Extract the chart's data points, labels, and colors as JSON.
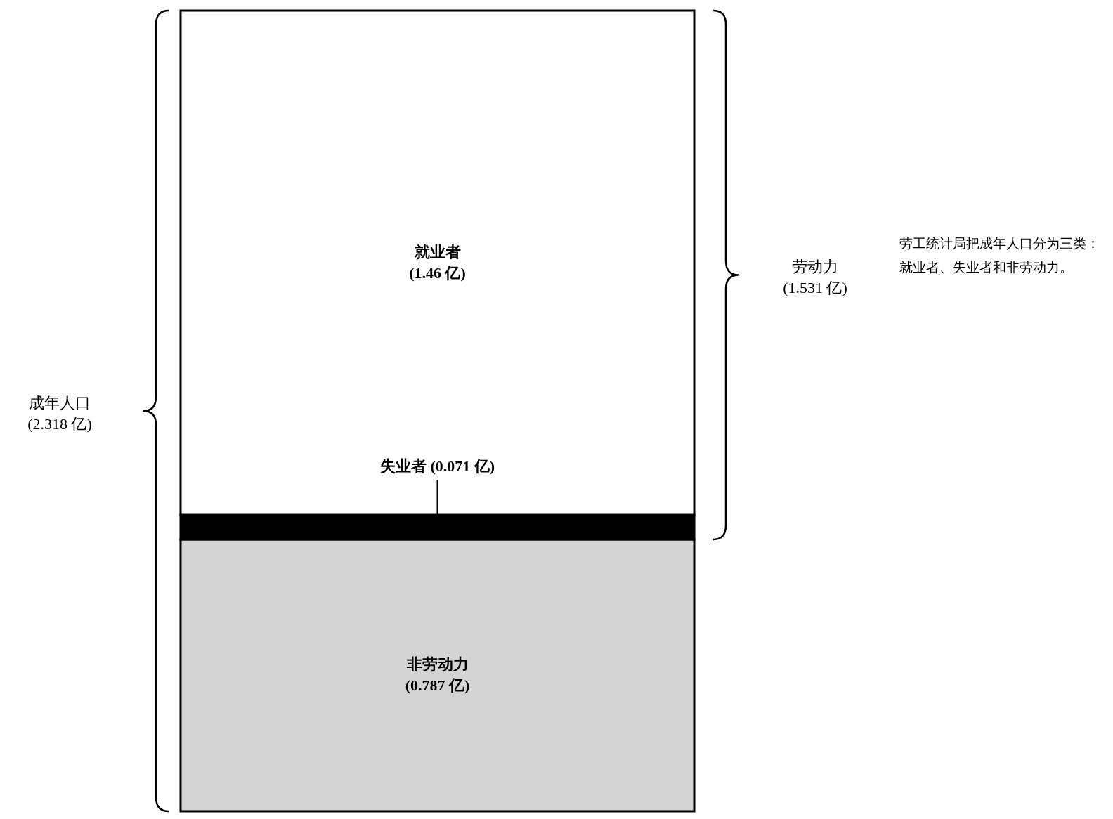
{
  "chart_data": {
    "type": "bar",
    "stacked": true,
    "categories": [
      null
    ],
    "series": [
      {
        "name": "非劳动力",
        "color": "#d4d4d4",
        "values": [
          0.787
        ],
        "value_labels": [
          "(0.787 亿)"
        ]
      },
      {
        "name": "失业者",
        "color": "#000000",
        "values": [
          0.071
        ],
        "value_labels": [
          "(0.071 亿)"
        ]
      },
      {
        "name": "就业者",
        "color": "#ffffff",
        "values": [
          1.46
        ],
        "value_labels": [
          "(1.46 亿)"
        ]
      }
    ],
    "annotations": [
      "劳动力\n(1.531 亿)",
      "成年人口\n(2.318 亿)",
      "劳工统计局把成年人口分为三类：就业者、失业者和非劳动力。"
    ],
    "legend": false
  }
}
